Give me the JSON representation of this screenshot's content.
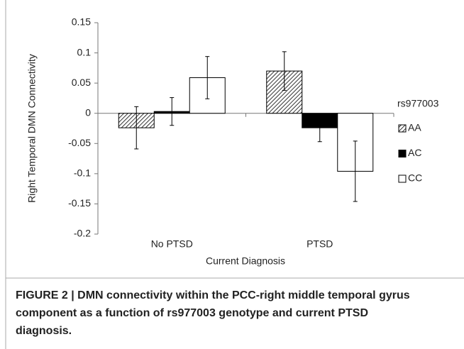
{
  "chart_data": {
    "type": "bar",
    "y_label": "Right Temporal DMN Connectivity",
    "x_label": "Current Diagnosis",
    "categories": [
      "No PTSD",
      "PTSD"
    ],
    "legend_title": "rs977003",
    "series": [
      {
        "name": "AA",
        "color": "#000000",
        "fill_style": "hatch",
        "values": [
          -0.024,
          0.07
        ],
        "errors": [
          0.035,
          0.032
        ]
      },
      {
        "name": "AC",
        "color": "#000000",
        "fill_style": "solid",
        "values": [
          0.003,
          -0.024
        ],
        "errors": [
          0.023,
          0.023
        ]
      },
      {
        "name": "CC",
        "color": "#000000",
        "fill_style": "open",
        "values": [
          0.059,
          -0.096
        ],
        "errors": [
          0.035,
          0.05
        ]
      }
    ],
    "ylim": [
      -0.2,
      0.15
    ],
    "yticks": [
      0.15,
      0.1,
      0.05,
      0,
      -0.05,
      -0.1,
      -0.15,
      -0.2
    ],
    "grid": false
  },
  "caption": "FIGURE 2 | DMN connectivity within the PCC-right middle temporal gyrus component as a function of rs977003 genotype and current PTSD diagnosis."
}
